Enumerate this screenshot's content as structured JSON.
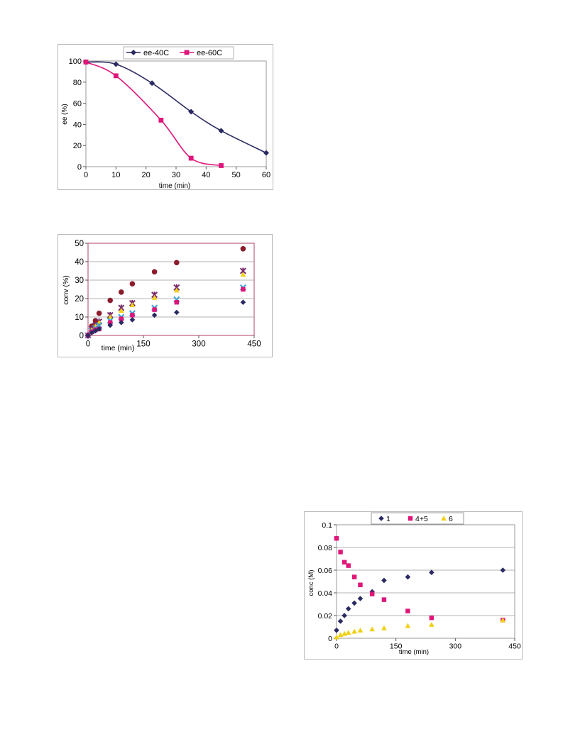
{
  "chart_data": [
    {
      "type": "line",
      "xlabel": "time (min)",
      "ylabel": "ee (%)",
      "xlim": [
        0,
        60
      ],
      "ylim": [
        0,
        100
      ],
      "xticks": [
        "0",
        "10",
        "20",
        "30",
        "40",
        "50",
        "60"
      ],
      "yticks": [
        "0",
        "20",
        "40",
        "60",
        "80",
        "100"
      ],
      "grid": false,
      "legend_position": "top",
      "series": [
        {
          "name": "ee-40C",
          "marker": "diamond",
          "color": "#2b2b63",
          "x": [
            0,
            10,
            22,
            35,
            45,
            60
          ],
          "y": [
            99,
            97,
            79,
            52,
            34,
            13
          ]
        },
        {
          "name": "ee-60C",
          "marker": "square",
          "color": "#e0157a",
          "x": [
            0,
            10,
            25,
            35,
            45
          ],
          "y": [
            99,
            86,
            44,
            8,
            1
          ]
        }
      ]
    },
    {
      "type": "scatter",
      "xlabel": "time (min)",
      "ylabel": "conv (%)",
      "xlim": [
        0,
        450
      ],
      "ylim": [
        0,
        50
      ],
      "xticks": [
        "0",
        "150",
        "300",
        "450"
      ],
      "yticks": [
        "0",
        "10",
        "20",
        "30",
        "40",
        "50"
      ],
      "grid": true,
      "series": [
        {
          "marker": "circle",
          "color": "#8c1c2c",
          "x": [
            0,
            10,
            20,
            30,
            60,
            90,
            120,
            180,
            240,
            420
          ],
          "y": [
            0,
            5,
            8,
            12,
            19,
            23.5,
            28,
            34.5,
            39.5,
            47
          ]
        },
        {
          "marker": "star",
          "color": "#7a2a6a",
          "x": [
            0,
            10,
            20,
            30,
            60,
            90,
            120,
            180,
            240,
            420
          ],
          "y": [
            0,
            3.5,
            5.5,
            7.5,
            11,
            15,
            17.5,
            22,
            26,
            35
          ]
        },
        {
          "marker": "triangle",
          "color": "#f0d010",
          "x": [
            0,
            10,
            20,
            30,
            60,
            90,
            120,
            180,
            240,
            420
          ],
          "y": [
            0,
            3,
            5,
            7,
            10,
            13.5,
            16.5,
            20.5,
            24.5,
            33
          ]
        },
        {
          "marker": "cross",
          "color": "#3aa0d8",
          "x": [
            0,
            10,
            20,
            30,
            60,
            90,
            120,
            180,
            240,
            420
          ],
          "y": [
            0,
            2.5,
            4,
            5.5,
            8,
            10,
            12,
            15,
            19.5,
            26
          ]
        },
        {
          "marker": "square",
          "color": "#e0157a",
          "x": [
            0,
            10,
            20,
            30,
            60,
            90,
            120,
            180,
            240,
            420
          ],
          "y": [
            0,
            2,
            3,
            3.5,
            7,
            9,
            11,
            14,
            18,
            25
          ]
        },
        {
          "marker": "diamond",
          "color": "#2b2b63",
          "x": [
            0,
            10,
            20,
            30,
            60,
            90,
            120,
            180,
            240,
            420
          ],
          "y": [
            0,
            1.5,
            2.5,
            3.5,
            5.5,
            7,
            8.5,
            11,
            12.5,
            18
          ]
        }
      ]
    },
    {
      "type": "scatter",
      "xlabel": "time (min)",
      "ylabel": "conc (M)",
      "xlim": [
        0,
        450
      ],
      "ylim": [
        0,
        0.1
      ],
      "xticks": [
        "0",
        "150",
        "300",
        "450"
      ],
      "yticks": [
        "0",
        "0.02",
        "0.04",
        "0.06",
        "0.08",
        "0.1"
      ],
      "grid": true,
      "legend_position": "top",
      "series": [
        {
          "name": "1",
          "marker": "diamond",
          "color": "#2b2b63",
          "x": [
            0,
            10,
            20,
            30,
            45,
            60,
            90,
            120,
            180,
            240,
            420
          ],
          "y": [
            0.007,
            0.015,
            0.02,
            0.026,
            0.031,
            0.035,
            0.041,
            0.051,
            0.054,
            0.058,
            0.06
          ]
        },
        {
          "name": "4+5",
          "marker": "square",
          "color": "#e0157a",
          "x": [
            0,
            10,
            20,
            30,
            45,
            60,
            90,
            120,
            180,
            240,
            420
          ],
          "y": [
            0.088,
            0.076,
            0.067,
            0.064,
            0.054,
            0.047,
            0.039,
            0.034,
            0.024,
            0.018,
            0.016
          ]
        },
        {
          "name": "6",
          "marker": "triangle",
          "color": "#f0d010",
          "x": [
            0,
            10,
            20,
            30,
            45,
            60,
            90,
            120,
            180,
            240,
            420
          ],
          "y": [
            0.001,
            0.003,
            0.004,
            0.005,
            0.006,
            0.007,
            0.008,
            0.009,
            0.011,
            0.012,
            0.016
          ]
        }
      ]
    }
  ]
}
